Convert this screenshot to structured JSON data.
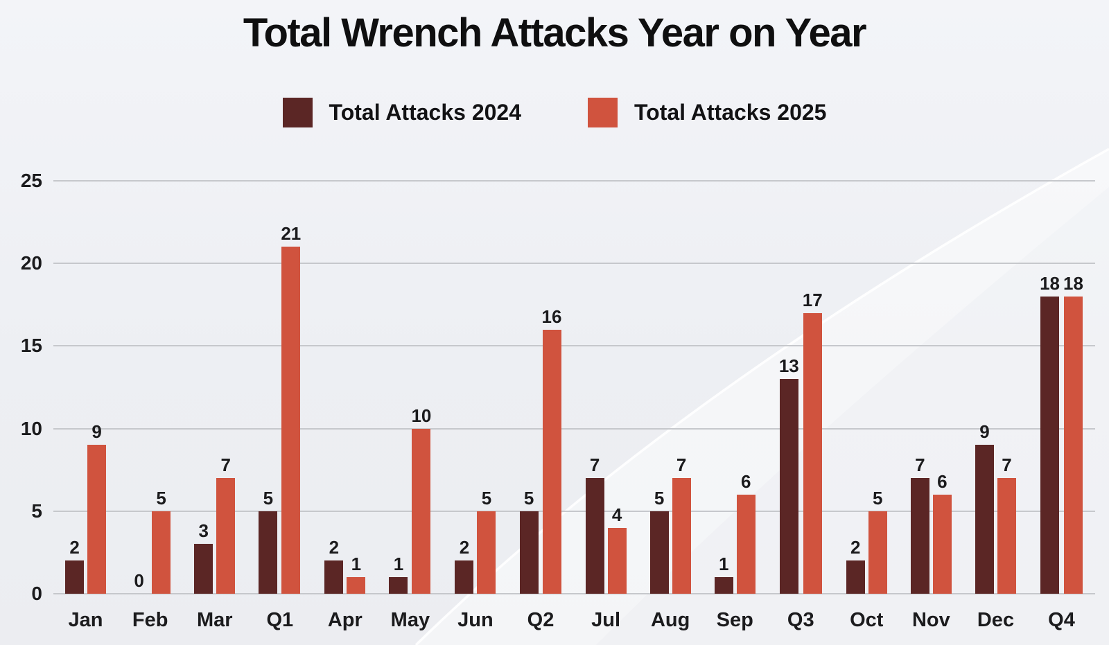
{
  "chart_data": {
    "type": "bar",
    "title": "Total Wrench Attacks Year on Year",
    "categories": [
      "Jan",
      "Feb",
      "Mar",
      "Q1",
      "Apr",
      "May",
      "Jun",
      "Q2",
      "Jul",
      "Aug",
      "Sep",
      "Q3",
      "Oct",
      "Nov",
      "Dec",
      "Q4"
    ],
    "series": [
      {
        "name": "Total Attacks 2024",
        "color": "#5b2625",
        "values": [
          2,
          0,
          3,
          5,
          2,
          1,
          2,
          5,
          7,
          5,
          1,
          13,
          2,
          7,
          9,
          18
        ]
      },
      {
        "name": "Total Attacks 2025",
        "color": "#d0533e",
        "values": [
          9,
          5,
          7,
          21,
          1,
          10,
          5,
          16,
          4,
          7,
          6,
          17,
          5,
          6,
          7,
          18
        ]
      }
    ],
    "xlabel": "",
    "ylabel": "",
    "ylim": [
      0,
      25
    ],
    "yticks": [
      0,
      5,
      10,
      15,
      20,
      25
    ],
    "grid": true,
    "legend_position": "top",
    "value_labels": true
  },
  "colors": {
    "background": "#eef0f4",
    "gridline": "#c6c8cc",
    "text": "#1b1b1d",
    "series_2024": "#5b2625",
    "series_2025": "#d0533e"
  }
}
